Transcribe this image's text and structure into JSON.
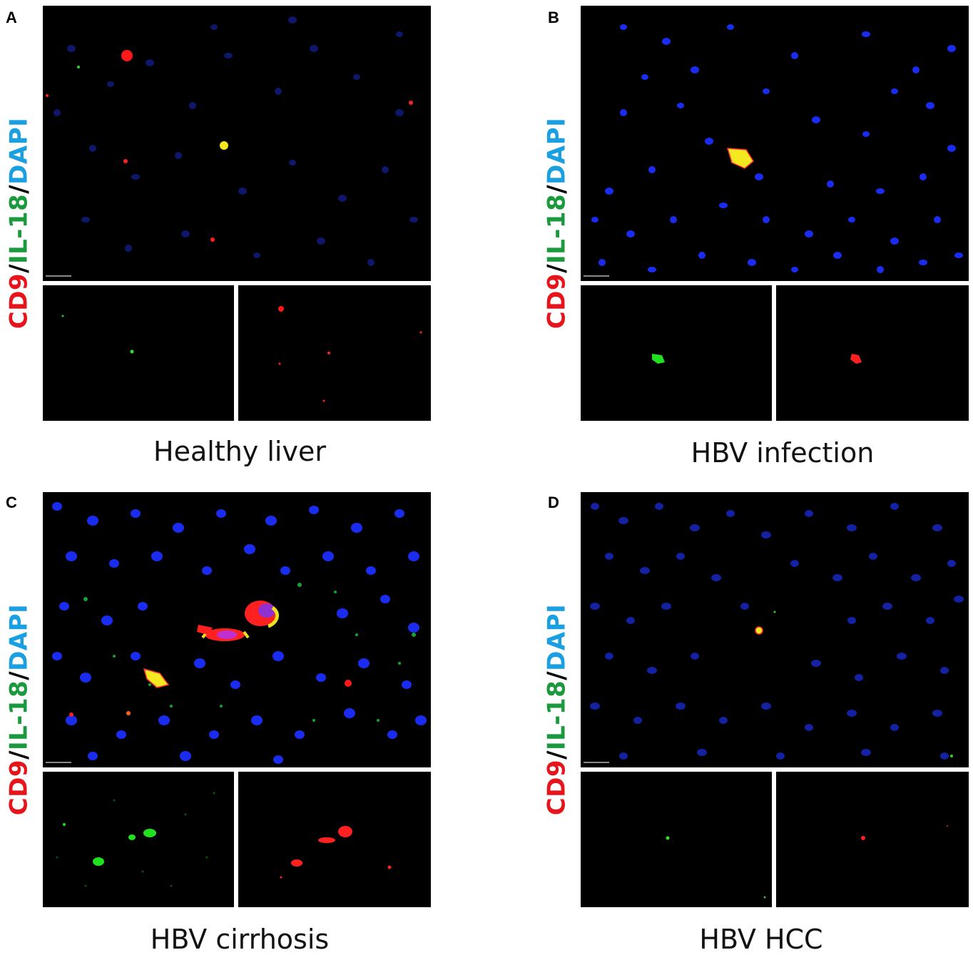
{
  "panels": [
    {
      "letter": "A",
      "caption": "Healthy liver"
    },
    {
      "letter": "B",
      "caption": "HBV infection"
    },
    {
      "letter": "C",
      "caption": "HBV cirrhosis"
    },
    {
      "letter": "D",
      "caption": "HBV HCC"
    }
  ],
  "stain": {
    "cd9": "CD9",
    "sep": "/",
    "il18": "IL-18",
    "dapi": "DAPI"
  },
  "colors": {
    "cd9": "#e8141c",
    "il18": "#1a9a3c",
    "dapi": "#1aa0e0",
    "nucleus": "#1a2bd8",
    "merge": "#f0e020"
  }
}
